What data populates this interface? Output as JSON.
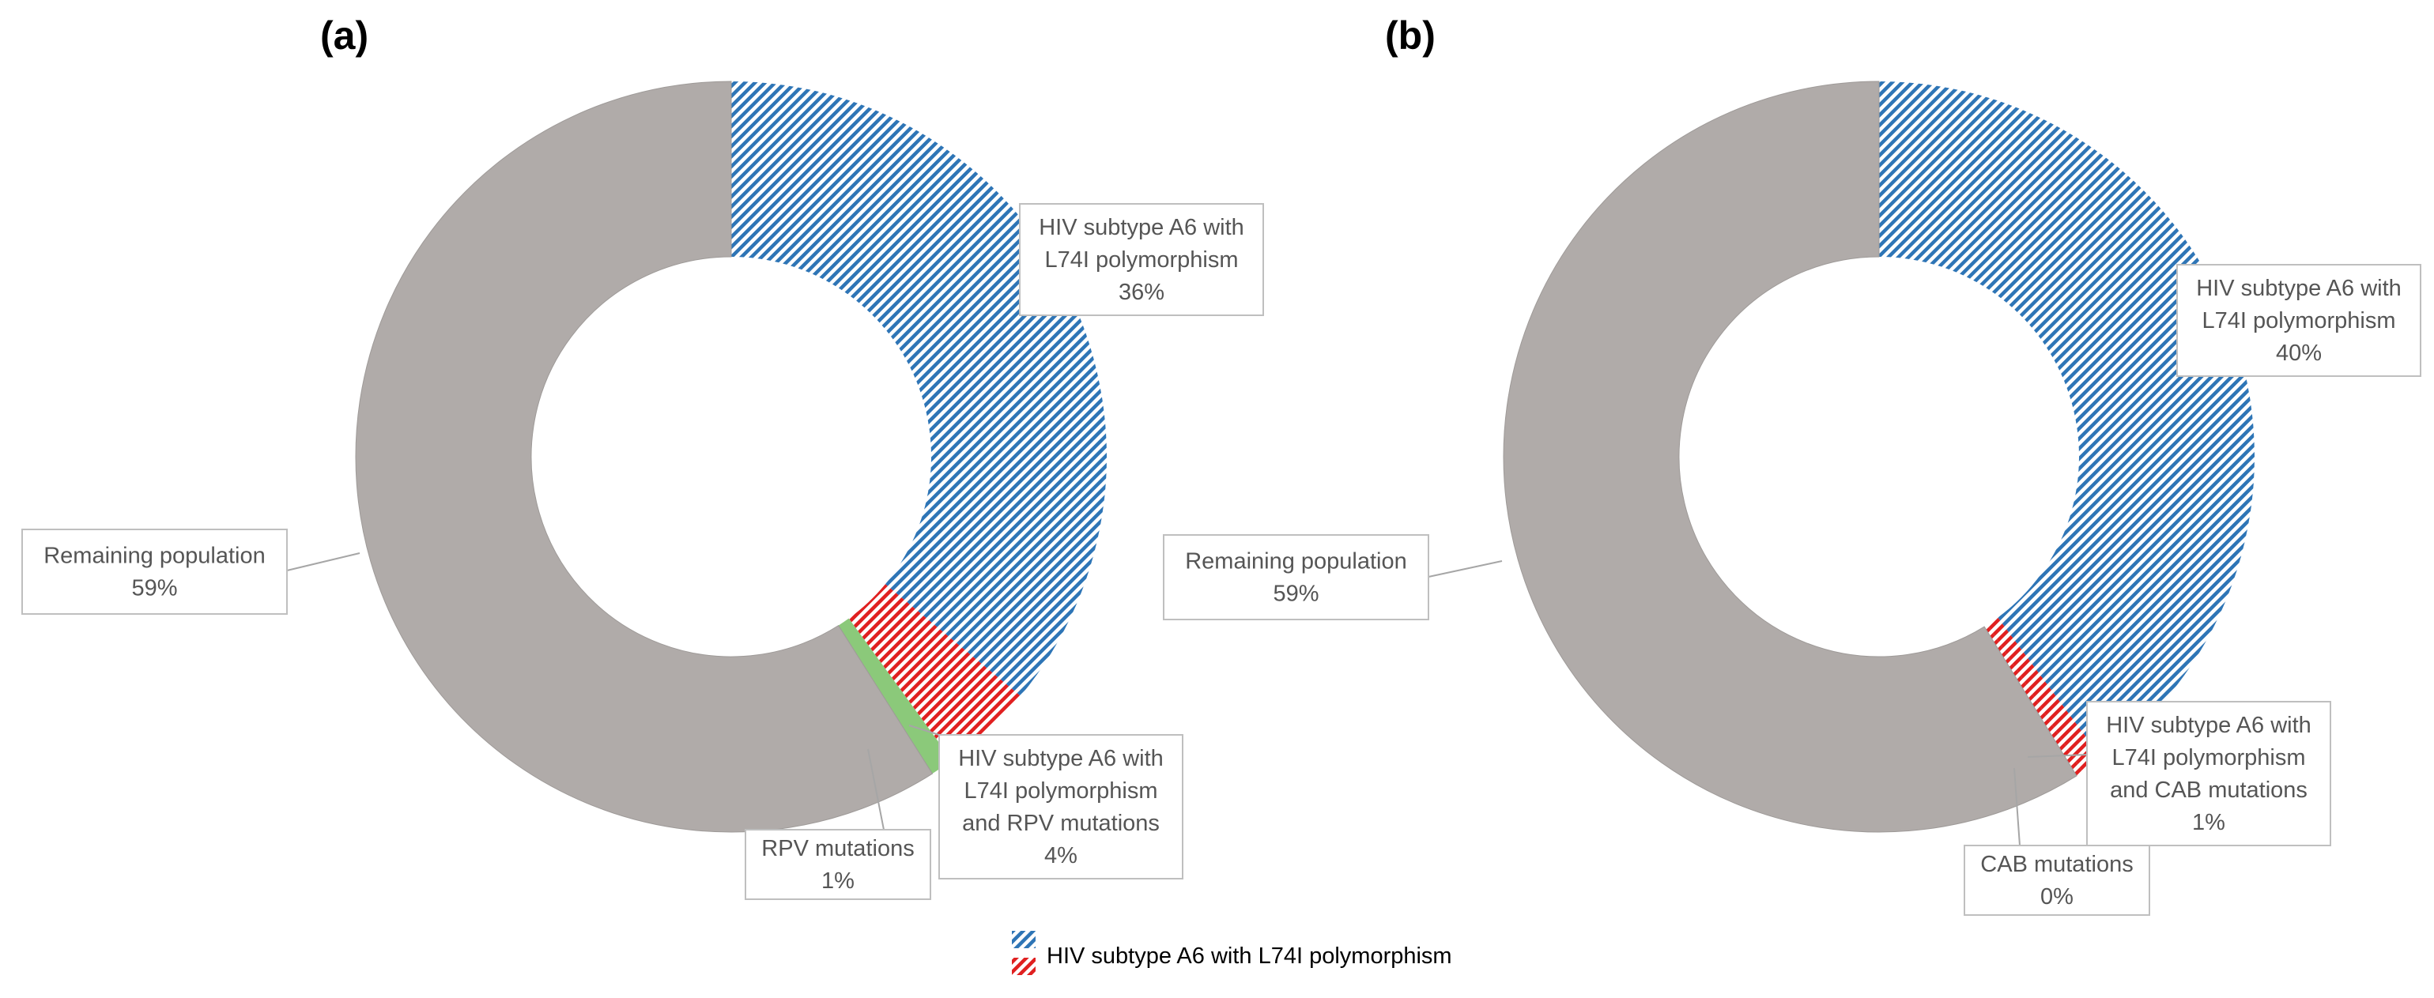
{
  "colors": {
    "blue": "#2e75b6",
    "red": "#e02020",
    "green": "#8bc97a",
    "grey": "#b0aba9",
    "legend_red": "#d9534f"
  },
  "chart_data": [
    {
      "type": "pie",
      "panel_label": "(a)",
      "donut": true,
      "slices": [
        {
          "key": "a6",
          "lines": [
            "HIV subtype A6 with",
            "L74I polymorphism",
            "36%"
          ],
          "value": 36,
          "pattern": "hatch-blue"
        },
        {
          "key": "a6rpv",
          "lines": [
            "HIV subtype A6 with",
            "L74I polymorphism",
            "and RPV mutations",
            "4%"
          ],
          "value": 4,
          "pattern": "hatch-red"
        },
        {
          "key": "rpv",
          "lines": [
            "RPV mutations",
            "1%"
          ],
          "value": 1,
          "pattern": "solid-green"
        },
        {
          "key": "rem",
          "lines": [
            "Remaining population",
            "59%"
          ],
          "value": 59,
          "pattern": "solid-grey"
        }
      ]
    },
    {
      "type": "pie",
      "panel_label": "(b)",
      "donut": true,
      "slices": [
        {
          "key": "a6",
          "lines": [
            "HIV subtype A6 with",
            "L74I polymorphism",
            "40%"
          ],
          "value": 40,
          "pattern": "hatch-blue"
        },
        {
          "key": "a6cab",
          "lines": [
            "HIV subtype A6 with",
            "L74I polymorphism",
            "and CAB mutations",
            "1%"
          ],
          "value": 1,
          "pattern": "hatch-red"
        },
        {
          "key": "cab",
          "lines": [
            "CAB mutations",
            "0%"
          ],
          "value": 0.3,
          "pattern": "hatch-red"
        },
        {
          "key": "rem",
          "lines": [
            "Remaining population",
            "59%"
          ],
          "value": 59,
          "pattern": "solid-grey"
        }
      ]
    }
  ],
  "legend": {
    "label": "HIV subtype A6 with L74I polymorphism"
  }
}
